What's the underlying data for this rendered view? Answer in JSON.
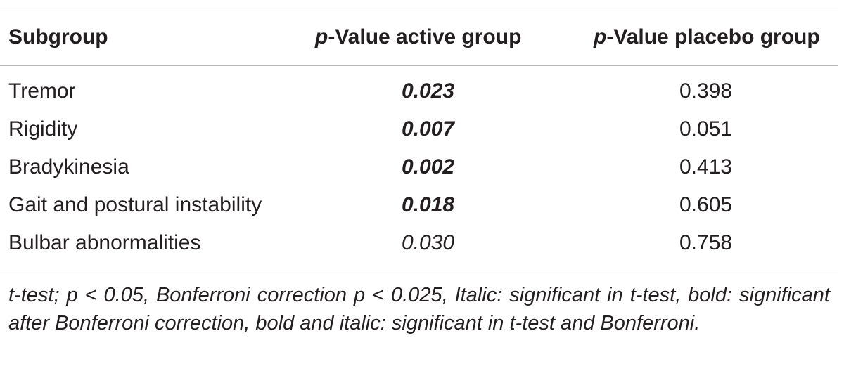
{
  "table": {
    "headers": {
      "subgroup": "Subgroup",
      "active_p": "p",
      "active_rest": "-Value active group",
      "placebo_p": "p",
      "placebo_rest": "-Value placebo group"
    },
    "rows": [
      {
        "subgroup": "Tremor",
        "active": "0.023",
        "active_style": "bold-italic",
        "placebo": "0.398"
      },
      {
        "subgroup": "Rigidity",
        "active": "0.007",
        "active_style": "bold-italic",
        "placebo": "0.051"
      },
      {
        "subgroup": "Bradykinesia",
        "active": "0.002",
        "active_style": "bold-italic",
        "placebo": "0.413"
      },
      {
        "subgroup": "Gait and postural instability",
        "active": "0.018",
        "active_style": "bold-italic",
        "placebo": "0.605"
      },
      {
        "subgroup": "Bulbar abnormalities",
        "active": "0.030",
        "active_style": "italic",
        "placebo": "0.758"
      }
    ]
  },
  "footnote": "t-test; p < 0.05, Bonferroni correction p < 0.025, Italic: significant in t-test, bold: significant after Bonferroni correction, bold and italic: significant in t-test and Bonferroni."
}
